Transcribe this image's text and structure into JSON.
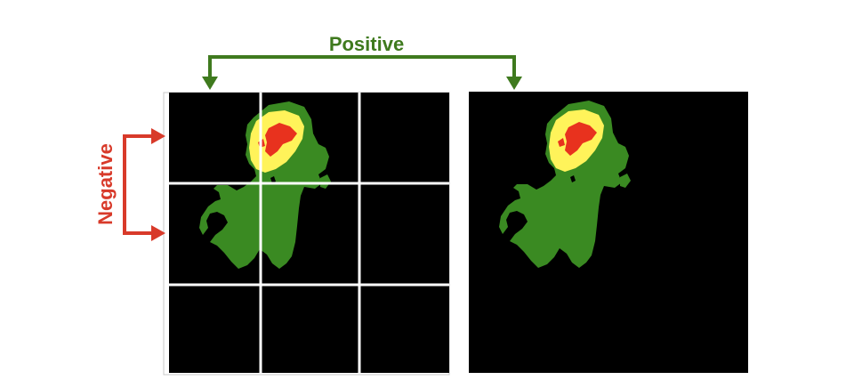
{
  "labels": {
    "positive": "Positive",
    "negative": "Negative"
  },
  "grid": {
    "rows": 3,
    "cols": 3
  },
  "colors": {
    "background": "#000000",
    "grid_lines": "#ffffff",
    "tissue": "#3a8a22",
    "core_outer": "#fff35a",
    "core_inner": "#e8321e",
    "positive_arrow": "#3f7a1e",
    "negative_arrow": "#d83a2a"
  }
}
